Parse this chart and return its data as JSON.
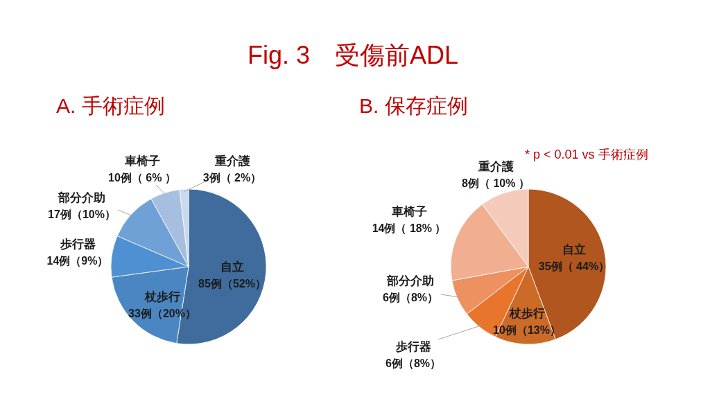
{
  "chart_data": [
    {
      "type": "pie",
      "title": "Fig. 3　受傷前ADL",
      "subtitle": "A. 手術症例",
      "categories": [
        "自立",
        "杖歩行",
        "歩行器",
        "部分介助",
        "車椅子",
        "重介護"
      ],
      "values": [
        85,
        33,
        14,
        17,
        10,
        3
      ],
      "colors": [
        "#3f6c9c",
        "#4a86c2",
        "#4f90d2",
        "#6fa1d6",
        "#a6bfe0",
        "#cad9ed"
      ],
      "value_labels": [
        "85例（52%）",
        "33例（20%）",
        "14例（9%）",
        "17例（10%）",
        "10例（ 6% ）",
        "3例（ 2%）"
      ]
    },
    {
      "type": "pie",
      "subtitle": "B. 保存症例",
      "categories": [
        "自立",
        "杖歩行",
        "歩行器",
        "部分介助",
        "車椅子",
        "重介護"
      ],
      "values": [
        35,
        10,
        6,
        6,
        14,
        8
      ],
      "colors": [
        "#b0561e",
        "#cc6a28",
        "#e8752b",
        "#ee9160",
        "#f1ae90",
        "#f4cbbb"
      ],
      "value_labels": [
        "35例（ 44%）",
        "10例（13%）",
        "6例（8%）",
        "6例（8%）",
        "14例（ 18% ）",
        "8例（ 10% ）"
      ],
      "annotations": [
        "* p < 0.01 vs 手術症例"
      ]
    }
  ]
}
